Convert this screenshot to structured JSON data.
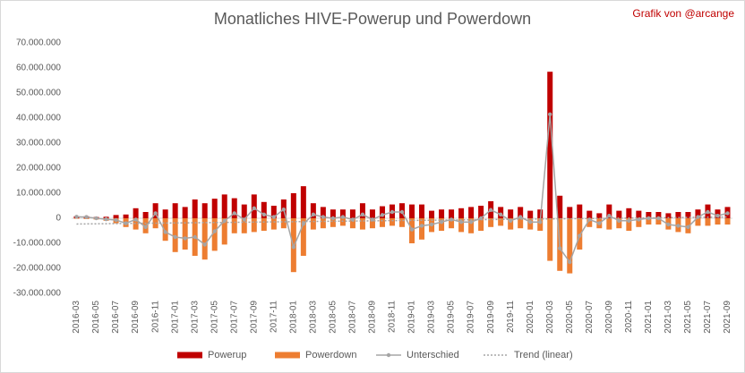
{
  "chart_data": {
    "type": "bar",
    "title": "Monatliches HIVE-Powerup und Powerdown",
    "annotation": "Grafik von @arcange",
    "categories": [
      "2016-03",
      null,
      "2016-05",
      null,
      "2016-07",
      null,
      "2016-09",
      null,
      "2016-11",
      null,
      "2017-01",
      null,
      "2017-03",
      null,
      "2017-05",
      null,
      "2017-07",
      null,
      "2017-09",
      null,
      "2017-11",
      null,
      "2018-01",
      null,
      "2018-03",
      null,
      "2018-05",
      null,
      "2018-07",
      null,
      "2018-09",
      null,
      "2018-11",
      null,
      "2019-01",
      null,
      "2019-03",
      null,
      "2019-05",
      null,
      "2019-07",
      null,
      "2019-09",
      null,
      "2019-11",
      null,
      "2020-01",
      null,
      "2020-03",
      null,
      "2020-05",
      null,
      "2020-07",
      null,
      "2020-09",
      null,
      "2020-11",
      null,
      "2021-01",
      null,
      "2021-03",
      null,
      "2021-05",
      null,
      "2021-07",
      null,
      "2021-09"
    ],
    "series": [
      {
        "name": "Powerup",
        "type": "bar",
        "color": "#c00000",
        "values": [
          800000,
          800000,
          500000,
          600000,
          1300000,
          1500000,
          4000000,
          2500000,
          6000000,
          3500000,
          6000000,
          4500000,
          7500000,
          6000000,
          7800000,
          9500000,
          8000000,
          5500000,
          9500000,
          6500000,
          5000000,
          7500000,
          10000000,
          12800000,
          6000000,
          4500000,
          3500000,
          3500000,
          3500000,
          6000000,
          3500000,
          4800000,
          5500000,
          6000000,
          5500000,
          5500000,
          3000000,
          3500000,
          3500000,
          4000000,
          4500000,
          5000000,
          6800000,
          4500000,
          3500000,
          4500000,
          3000000,
          3500000,
          58500000,
          9000000,
          4500000,
          5500000,
          3000000,
          2000000,
          5500000,
          3000000,
          4000000,
          3000000,
          2500000,
          2500000,
          2000000,
          2500000,
          2500000,
          3500000,
          5500000,
          3500000,
          4500000
        ]
      },
      {
        "name": "Powerdown",
        "type": "bar",
        "color": "#ed7d31",
        "values": [
          -200000,
          -300000,
          -500000,
          -1000000,
          -2000000,
          -3500000,
          -4500000,
          -6000000,
          -4000000,
          -9000000,
          -13500000,
          -12500000,
          -15000000,
          -16500000,
          -13000000,
          -10500000,
          -6000000,
          -6000000,
          -5500000,
          -5000000,
          -4500000,
          -4000000,
          -21500000,
          -15000000,
          -4500000,
          -4000000,
          -3500000,
          -3000000,
          -4000000,
          -4500000,
          -4000000,
          -3500000,
          -3000000,
          -3500000,
          -10000000,
          -8500000,
          -5500000,
          -5000000,
          -4000000,
          -5500000,
          -6000000,
          -5000000,
          -3500000,
          -3000000,
          -4500000,
          -4000000,
          -4500000,
          -5000000,
          -17000000,
          -21000000,
          -22000000,
          -12500000,
          -3500000,
          -4000000,
          -4500000,
          -4000000,
          -5000000,
          -3500000,
          -2500000,
          -2500000,
          -4500000,
          -5500000,
          -6000000,
          -3000000,
          -3000000,
          -2500000,
          -2500000
        ]
      },
      {
        "name": "Unterschied",
        "type": "line",
        "color": "#a5a5a5",
        "values": [
          600000,
          500000,
          0,
          -400000,
          -700000,
          -2000000,
          -500000,
          -3500000,
          2000000,
          -5500000,
          -7500000,
          -8000000,
          -7500000,
          -10500000,
          -5200000,
          -1000000,
          2000000,
          -500000,
          4000000,
          1500000,
          500000,
          3500000,
          -11500000,
          -2200000,
          1500000,
          500000,
          0,
          500000,
          -500000,
          1500000,
          -500000,
          1300000,
          2500000,
          2500000,
          -4500000,
          -3000000,
          -2500000,
          -1500000,
          -500000,
          -1500000,
          -1500000,
          0,
          3300000,
          1500000,
          -1000000,
          500000,
          -1500000,
          -1500000,
          41500000,
          -12000000,
          -17500000,
          -7000000,
          -500000,
          -2000000,
          1000000,
          -1000000,
          -1000000,
          -500000,
          0,
          0,
          -2500000,
          -3000000,
          -3500000,
          500000,
          2500000,
          1000000,
          2000000
        ]
      },
      {
        "name": "Trend (linear)",
        "type": "trend",
        "color": "#a5a5a5",
        "x": [
          0,
          66
        ],
        "values": [
          -2300000,
          500000
        ]
      }
    ],
    "ylim": [
      -30000000,
      70000000
    ],
    "yticks": [
      {
        "value": -30000000,
        "label": "-30.000.000"
      },
      {
        "value": -20000000,
        "label": "-20.000.000"
      },
      {
        "value": -10000000,
        "label": "-10.000.000"
      },
      0,
      {
        "value": 10000000,
        "label": "10.000.000"
      },
      {
        "value": 20000000,
        "label": "20.000.000"
      },
      {
        "value": 30000000,
        "label": "30.000.000"
      },
      {
        "value": 40000000,
        "label": "40.000.000"
      },
      {
        "value": 50000000,
        "label": "50.000.000"
      },
      {
        "value": 60000000,
        "label": "60.000.000"
      },
      {
        "value": 70000000,
        "label": "70.000.000"
      }
    ],
    "grid": false,
    "legend": "bottom"
  }
}
